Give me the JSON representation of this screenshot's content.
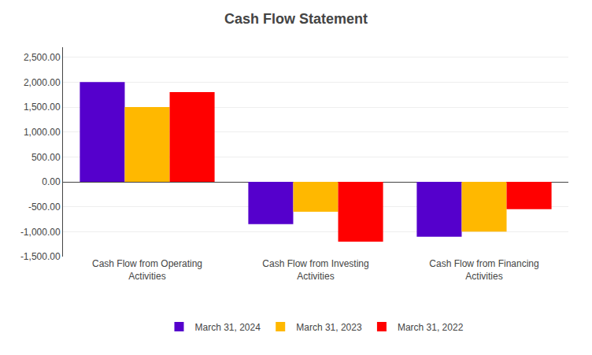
{
  "chart_data": {
    "type": "bar",
    "title": "Cash Flow Statement",
    "categories": [
      "Cash Flow from Operating\nActivities",
      "Cash Flow from Investing\nActivities",
      "Cash Flow from Financing\nActivities"
    ],
    "series": [
      {
        "name": "March 31, 2024",
        "color": "#5500CC",
        "values": [
          2000,
          -850,
          -1100
        ]
      },
      {
        "name": "March 31, 2023",
        "color": "#FFB800",
        "values": [
          1500,
          -600,
          -1000
        ]
      },
      {
        "name": "March 31, 2022",
        "color": "#FF0000",
        "values": [
          1800,
          -1200,
          -550
        ]
      }
    ],
    "ylim": [
      -1500,
      2700
    ],
    "yticks": [
      {
        "value": -1500,
        "label": "-1,500.00"
      },
      {
        "value": -1000,
        "label": "-1,000.00"
      },
      {
        "value": -500,
        "label": "-500.00"
      },
      {
        "value": 0,
        "label": "0.00"
      },
      {
        "value": 500,
        "label": "500.00"
      },
      {
        "value": 1000,
        "label": "1,000.00"
      },
      {
        "value": 1500,
        "label": "1,500.00"
      },
      {
        "value": 2000,
        "label": "2,000.00"
      },
      {
        "value": 2500,
        "label": "2,500.00"
      }
    ],
    "grid": true,
    "legend": "bottom"
  }
}
